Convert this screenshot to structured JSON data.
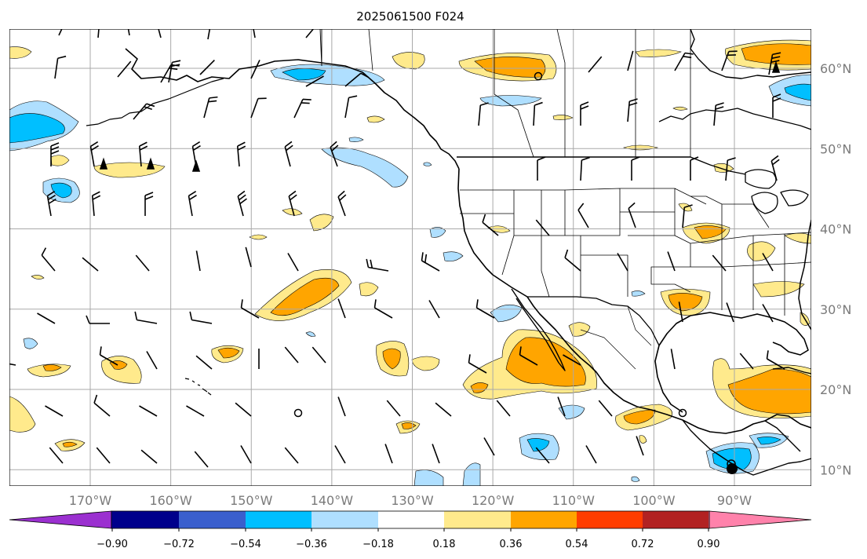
{
  "title": "2025061500 F024",
  "map": {
    "lon_range": [
      -180,
      -80
    ],
    "lat_range": [
      8,
      65
    ],
    "grid": true,
    "lat_ticks": [
      {
        "value": 60,
        "label": "60°N"
      },
      {
        "value": 50,
        "label": "50°N"
      },
      {
        "value": 40,
        "label": "40°N"
      },
      {
        "value": 30,
        "label": "30°N"
      },
      {
        "value": 20,
        "label": "20°N"
      },
      {
        "value": 10,
        "label": "10°N"
      }
    ],
    "lon_ticks": [
      {
        "value": -170,
        "label": "170°W"
      },
      {
        "value": -160,
        "label": "160°W"
      },
      {
        "value": -150,
        "label": "150°W"
      },
      {
        "value": -140,
        "label": "140°W"
      },
      {
        "value": -130,
        "label": "130°W"
      },
      {
        "value": -120,
        "label": "120°W"
      },
      {
        "value": -110,
        "label": "110°W"
      },
      {
        "value": -100,
        "label": "100°W"
      },
      {
        "value": -90,
        "label": "90°W"
      }
    ],
    "colors": {
      "neg_strong": "#00bfff",
      "neg_weak": "#afdfff",
      "pos_weak": "#ffea8c",
      "pos_strong": "#ffa500",
      "pos_stronger": "#ff3d00",
      "coast": "#000000",
      "grid": "#a9a9a9"
    }
  },
  "colorbar": {
    "colors": [
      "#9b30d0",
      "#00008b",
      "#3a5fcd",
      "#00bfff",
      "#afdfff",
      "#ffffff",
      "#ffea8c",
      "#ffa500",
      "#ff3d00",
      "#b22222",
      "#ff82ab",
      "#ff82ab"
    ],
    "labels": [
      "−0.90",
      "−0.72",
      "−0.54",
      "−0.36",
      "−0.18",
      "0.18",
      "0.36",
      "0.54",
      "0.72",
      "0.90"
    ]
  }
}
